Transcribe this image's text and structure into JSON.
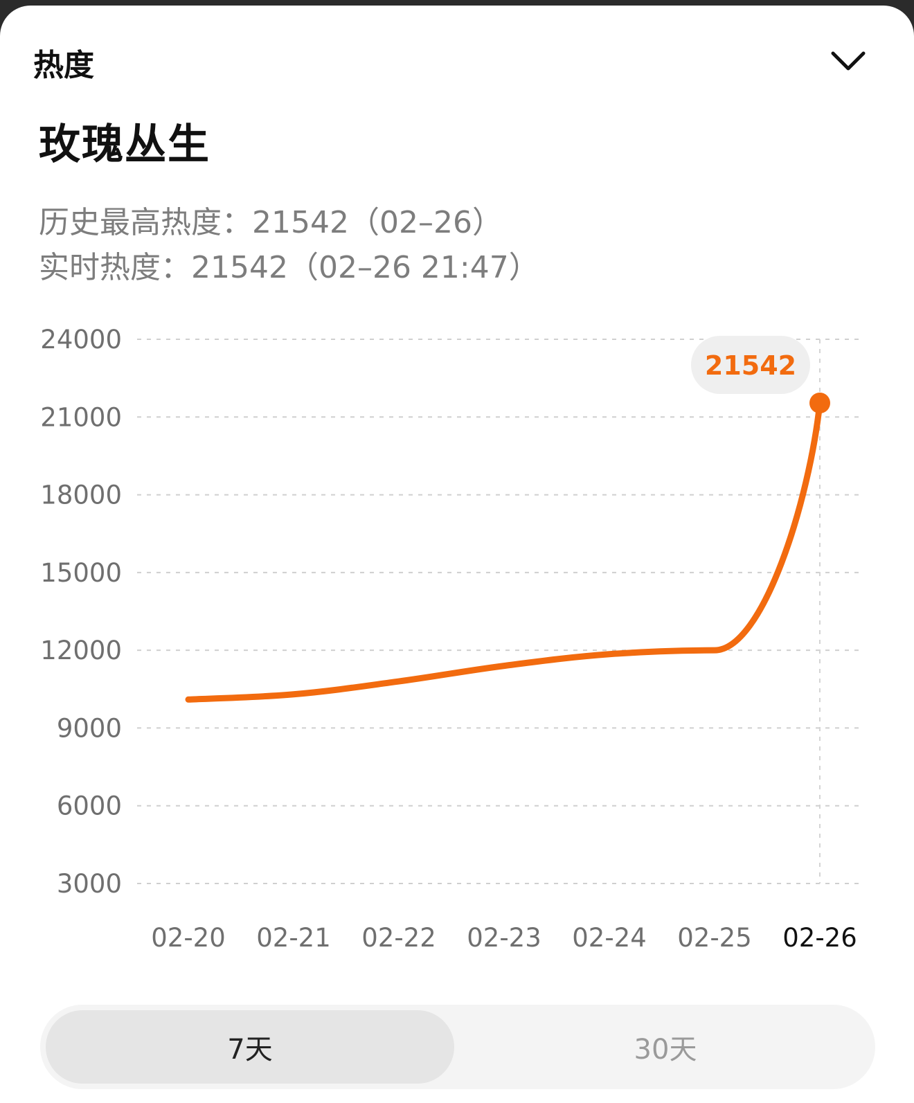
{
  "header": {
    "title": "热度"
  },
  "topic": {
    "name": "玫瑰丛生"
  },
  "stats": {
    "history_max": "历史最高热度：21542（02–26）",
    "realtime": "实时热度：21542（02–26 21:47）"
  },
  "accent_color": "#f26b0f",
  "chart_data": {
    "type": "line",
    "title": "",
    "xlabel": "",
    "ylabel": "",
    "categories": [
      "02-20",
      "02-21",
      "02-22",
      "02-23",
      "02-24",
      "02-25",
      "02-26"
    ],
    "series": [
      {
        "values": [
          10100,
          10300,
          10800,
          11400,
          11850,
          12000,
          21542
        ]
      }
    ],
    "yticks": [
      3000,
      6000,
      9000,
      12000,
      15000,
      18000,
      21000,
      24000
    ],
    "ylim": [
      3000,
      24000
    ],
    "grid": true,
    "highlight": {
      "category": "02-26",
      "label": "21542"
    }
  },
  "range_tabs": [
    {
      "label": "7天",
      "selected": true
    },
    {
      "label": "30天",
      "selected": false
    }
  ]
}
